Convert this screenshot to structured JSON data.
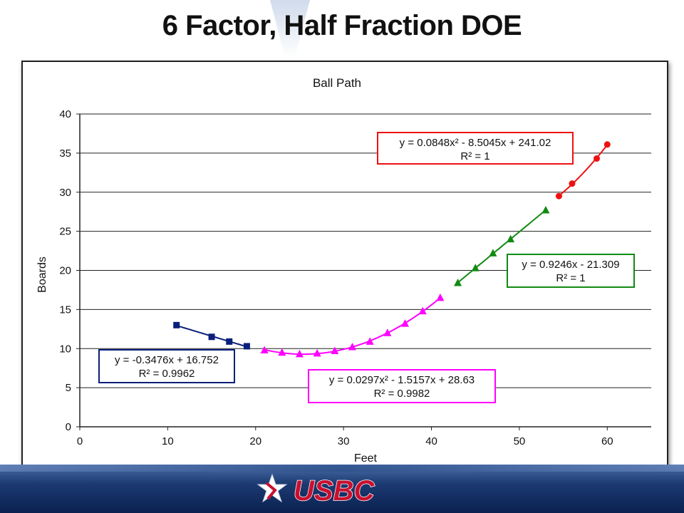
{
  "slide": {
    "title": "6 Factor, Half Fraction DOE",
    "logo_text": "USBC"
  },
  "chart_data": {
    "type": "scatter",
    "title": "Ball Path",
    "xlabel": "Feet",
    "ylabel": "Boards",
    "xlim": [
      0,
      65
    ],
    "ylim": [
      0,
      40
    ],
    "x_ticks": [
      0,
      10,
      20,
      30,
      40,
      50,
      60
    ],
    "y_ticks": [
      0,
      5,
      10,
      15,
      20,
      25,
      30,
      35,
      40
    ],
    "grid": "horizontal",
    "series": [
      {
        "marker": "square",
        "color": "#0a1f7a",
        "x": [
          11,
          15,
          17,
          19
        ],
        "y": [
          13.0,
          11.5,
          10.9,
          10.3
        ],
        "trendline": "linear",
        "equation": "y = -0.3476x + 16.752",
        "r2": "R² = 0.9962"
      },
      {
        "marker": "triangle",
        "color": "#ff00ff",
        "x": [
          21,
          23,
          25,
          27,
          29,
          31,
          33,
          35,
          37,
          39,
          41
        ],
        "y": [
          9.8,
          9.5,
          9.3,
          9.4,
          9.7,
          10.2,
          10.9,
          12.0,
          13.2,
          14.8,
          16.5
        ],
        "trendline": "quadratic",
        "equation": "y = 0.0297x² - 1.5157x + 28.63",
        "r2": "R² = 0.9982"
      },
      {
        "marker": "triangle",
        "color": "#118a11",
        "x": [
          43,
          45,
          47,
          49,
          53
        ],
        "y": [
          18.4,
          20.3,
          22.2,
          24.0,
          27.7
        ],
        "trendline": "linear",
        "equation": "y = 0.9246x - 21.309",
        "r2": "R² = 1"
      },
      {
        "marker": "circle",
        "color": "#ee1111",
        "x": [
          54.5,
          56,
          58.8,
          60
        ],
        "y": [
          29.5,
          31.1,
          34.3,
          36.1
        ],
        "trendline": "quadratic",
        "equation": "y = 0.0848x² - 8.5045x + 241.02",
        "r2": "R² = 1"
      }
    ]
  }
}
